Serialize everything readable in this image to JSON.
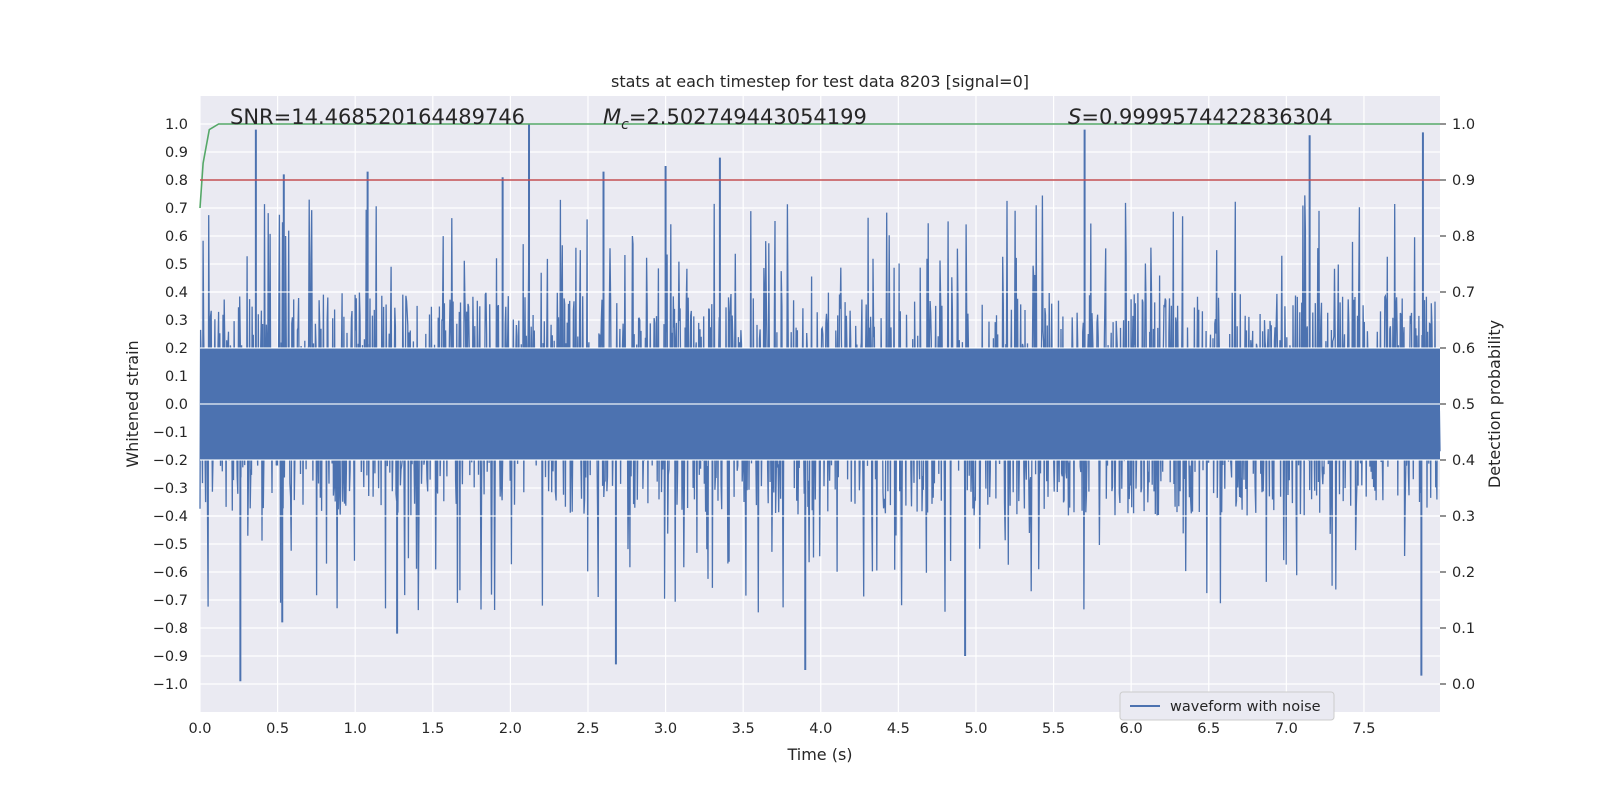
{
  "chart_data": {
    "type": "line",
    "title": "stats at each timestep for test data 8203 [signal=0]",
    "xlabel": "Time (s)",
    "ylabel": "Whitened strain",
    "y2label": "Detection probability",
    "xlim": [
      0.0,
      7.99
    ],
    "ylim": [
      -1.1,
      1.1
    ],
    "y2lim": [
      -0.05,
      1.05
    ],
    "x_ticks": [
      "0.0",
      "0.5",
      "1.0",
      "1.5",
      "2.0",
      "2.5",
      "3.0",
      "3.5",
      "4.0",
      "4.5",
      "5.0",
      "5.5",
      "6.0",
      "6.5",
      "7.0",
      "7.5"
    ],
    "y_ticks": [
      "1.0",
      "0.9",
      "0.8",
      "0.7",
      "0.6",
      "0.5",
      "0.4",
      "0.3",
      "0.2",
      "0.1",
      "0.0",
      "−0.1",
      "−0.2",
      "−0.3",
      "−0.4",
      "−0.5",
      "−0.6",
      "−0.7",
      "−0.8",
      "−0.9",
      "−1.0"
    ],
    "y2_ticks": [
      "1.0",
      "0.9",
      "0.8",
      "0.7",
      "0.6",
      "0.5",
      "0.4",
      "0.3",
      "0.2",
      "0.1",
      "0.0"
    ],
    "grid": true,
    "legend_placement": "lower-right",
    "annotations": {
      "snr": "SNR=14.468520164489746",
      "mc_symbol": "M",
      "mc_subscript": "c",
      "mc_value": "=2.502749443054199",
      "s_symbol": "S",
      "s_value": "=0.9999574422836304"
    },
    "series": [
      {
        "name": "waveform with noise",
        "axis": "left",
        "color": "#4c72b0",
        "description_values": "noisy whitened strain, mostly within ±0.4 with spikes up to ±1.0",
        "envelope": {
          "core_range": [
            -0.4,
            0.4
          ],
          "peaks_high": [
            [
              0.36,
              0.98
            ],
            [
              0.54,
              0.82
            ],
            [
              1.08,
              0.83
            ],
            [
              1.95,
              0.81
            ],
            [
              2.12,
              1.0
            ],
            [
              2.6,
              0.83
            ],
            [
              3.0,
              0.85
            ],
            [
              3.35,
              0.88
            ],
            [
              5.7,
              0.98
            ],
            [
              7.15,
              0.96
            ],
            [
              7.88,
              0.97
            ]
          ],
          "peaks_low": [
            [
              0.26,
              -0.99
            ],
            [
              0.53,
              -0.78
            ],
            [
              1.27,
              -0.82
            ],
            [
              2.68,
              -0.93
            ],
            [
              3.9,
              -0.95
            ],
            [
              4.93,
              -0.9
            ],
            [
              7.87,
              -0.97
            ]
          ]
        }
      },
      {
        "name": "",
        "axis": "right",
        "color": "#55a868",
        "x": [
          0.0,
          0.02,
          0.06,
          0.12,
          7.99
        ],
        "y": [
          0.85,
          0.93,
          0.99,
          1.0,
          1.0
        ]
      },
      {
        "name": "",
        "axis": "right",
        "color": "#c44e52",
        "x": [
          0.0,
          7.99
        ],
        "y": [
          0.9,
          0.9
        ]
      }
    ],
    "colors": {
      "plot_background": "#eaeaf2",
      "grid": "#ffffff",
      "waveform": "#4c72b0",
      "probability": "#55a868",
      "threshold": "#c44e52"
    }
  }
}
